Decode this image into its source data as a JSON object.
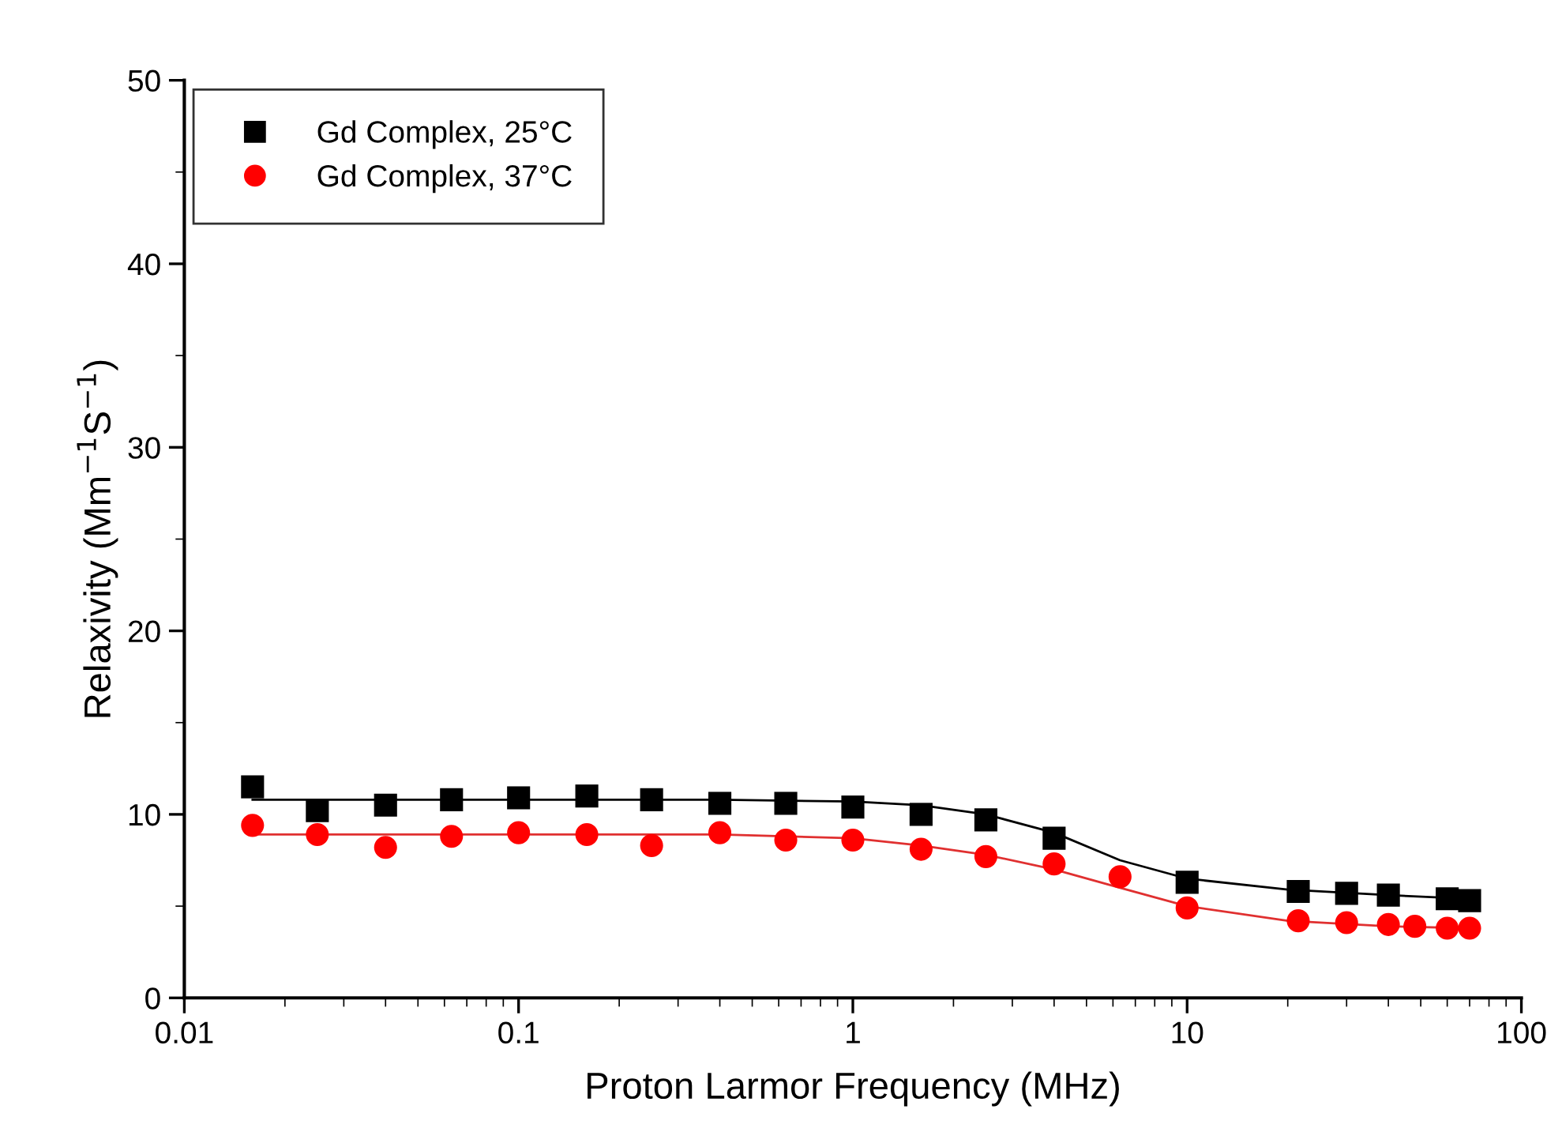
{
  "chart_data": {
    "type": "scatter",
    "xlabel": "Proton Larmor Frequency (MHz)",
    "ylabel": "Relaxivity (Mm$^{−1}$S$^{−1}$)",
    "log": "x",
    "xlim": [
      0.01,
      100
    ],
    "xticks": [
      0.01,
      0.1,
      1,
      10,
      100
    ],
    "ylim": [
      0,
      50
    ],
    "yticks": [
      0,
      10,
      20,
      30,
      40,
      50
    ],
    "grid": false,
    "legend": "top left",
    "series": [
      {
        "name": "Gd Complex, 25°C",
        "color": "#000000",
        "marker": "square",
        "x": [
          0.016,
          0.025,
          0.04,
          0.063,
          0.1,
          0.16,
          0.25,
          0.4,
          0.63,
          1,
          1.6,
          2.5,
          4,
          10,
          21.5,
          30,
          40,
          60,
          70
        ],
        "values": [
          11.5,
          10.2,
          10.5,
          10.8,
          10.9,
          11.0,
          10.8,
          10.6,
          10.6,
          10.4,
          10.0,
          9.7,
          8.7,
          6.3,
          5.8,
          5.7,
          5.6,
          5.4,
          5.3
        ]
      },
      {
        "name": "Gd Complex, 37°C",
        "color": "#ff0000",
        "marker": "circle",
        "x": [
          0.016,
          0.025,
          0.04,
          0.063,
          0.1,
          0.16,
          0.25,
          0.4,
          0.63,
          1,
          1.6,
          2.5,
          4,
          6.3,
          10,
          21.5,
          30,
          40,
          48,
          60,
          70
        ],
        "values": [
          9.4,
          8.9,
          8.2,
          8.8,
          9.0,
          8.9,
          8.3,
          9.0,
          8.6,
          8.6,
          8.1,
          7.7,
          7.3,
          6.6,
          4.9,
          4.2,
          4.1,
          4.0,
          3.9,
          3.8,
          3.8
        ]
      },
      {
        "type": "line",
        "color": "#000000",
        "marker": "none",
        "x": [
          0.016,
          0.1,
          0.4,
          1,
          1.6,
          2.5,
          4,
          6.3,
          10,
          20,
          40,
          70
        ],
        "values": [
          10.8,
          10.8,
          10.8,
          10.7,
          10.5,
          10.0,
          9.0,
          7.5,
          6.5,
          5.9,
          5.6,
          5.4
        ]
      },
      {
        "type": "line",
        "color": "#e03030",
        "marker": "none",
        "x": [
          0.016,
          0.1,
          0.4,
          1,
          1.6,
          2.5,
          4,
          6.3,
          10,
          20,
          40,
          70
        ],
        "values": [
          8.9,
          8.9,
          8.9,
          8.7,
          8.3,
          7.8,
          7.0,
          6.0,
          5.0,
          4.2,
          3.9,
          3.8
        ]
      }
    ]
  }
}
